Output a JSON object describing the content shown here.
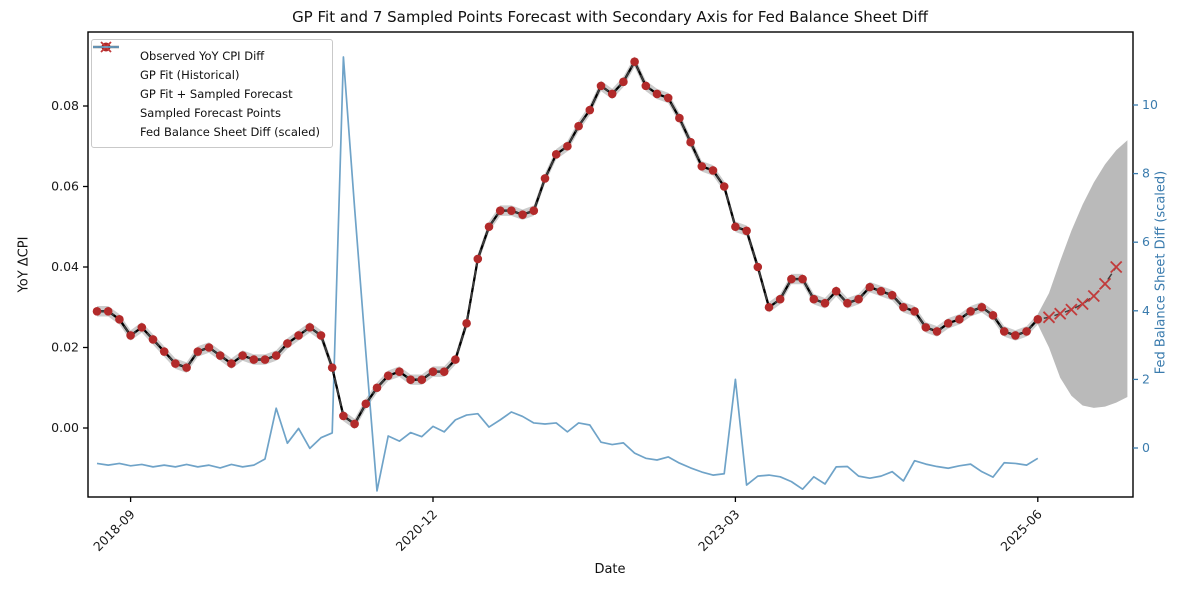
{
  "chart_data": {
    "type": "line",
    "title": "GP Fit and 7 Sampled Points Forecast with Secondary Axis for Fed Balance Sheet Diff",
    "xlabel": "Date",
    "ylabel": "YoY ΔCPI",
    "ylabel_right": "Fed Balance Sheet Diff (scaled)",
    "grid": false,
    "legend_position": "upper left",
    "axes": {
      "left": {
        "label": "YoY ΔCPI",
        "range": [
          -0.0172,
          0.0984
        ],
        "ticks": [
          {
            "v": 0.0,
            "t": "0.00"
          },
          {
            "v": 0.02,
            "t": "0.02"
          },
          {
            "v": 0.04,
            "t": "0.04"
          },
          {
            "v": 0.06,
            "t": "0.06"
          },
          {
            "v": 0.08,
            "t": "0.08"
          }
        ]
      },
      "right": {
        "label": "Fed Balance Sheet Diff (scaled)",
        "range": [
          -1.43,
          12.13
        ],
        "ticks": [
          {
            "v": 0,
            "t": "0"
          },
          {
            "v": 2,
            "t": "2"
          },
          {
            "v": 4,
            "t": "4"
          },
          {
            "v": 6,
            "t": "6"
          },
          {
            "v": 8,
            "t": "8"
          },
          {
            "v": 10,
            "t": "10"
          }
        ]
      },
      "x": {
        "label": "Date",
        "ticks": [
          {
            "v": "2018-09",
            "t": "2018-09"
          },
          {
            "v": "2020-12",
            "t": "2020-12"
          },
          {
            "v": "2023-03",
            "t": "2023-03"
          },
          {
            "v": "2025-06",
            "t": "2025-06"
          }
        ]
      }
    },
    "legend": {
      "items": [
        {
          "label": "Observed YoY CPI Diff",
          "marker": "circle"
        },
        {
          "label": "GP Fit (Historical)",
          "marker": "solid-line"
        },
        {
          "label": "GP Fit + Sampled Forecast",
          "marker": "dashed-line"
        },
        {
          "label": "Sampled Forecast Points",
          "marker": "x"
        },
        {
          "label": "Fed Balance Sheet Diff (scaled)",
          "marker": "blue-line"
        }
      ]
    },
    "colors": {
      "observed": "#b22a2a",
      "fit": "#000000",
      "forecast_line": "#3f3f3f",
      "forecast_marker": "#c23b3b",
      "fed": "#6fa3c8",
      "band": "#8f8f8f",
      "right_axis": "#3b7cae"
    },
    "months": [
      "2018-06",
      "2018-07",
      "2018-08",
      "2018-09",
      "2018-10",
      "2018-11",
      "2018-12",
      "2019-01",
      "2019-02",
      "2019-03",
      "2019-04",
      "2019-05",
      "2019-06",
      "2019-07",
      "2019-08",
      "2019-09",
      "2019-10",
      "2019-11",
      "2019-12",
      "2020-01",
      "2020-02",
      "2020-03",
      "2020-04",
      "2020-05",
      "2020-06",
      "2020-07",
      "2020-08",
      "2020-09",
      "2020-10",
      "2020-11",
      "2020-12",
      "2021-01",
      "2021-02",
      "2021-03",
      "2021-04",
      "2021-05",
      "2021-06",
      "2021-07",
      "2021-08",
      "2021-09",
      "2021-10",
      "2021-11",
      "2021-12",
      "2022-01",
      "2022-02",
      "2022-03",
      "2022-04",
      "2022-05",
      "2022-06",
      "2022-07",
      "2022-08",
      "2022-09",
      "2022-10",
      "2022-11",
      "2022-12",
      "2023-01",
      "2023-02",
      "2023-03",
      "2023-04",
      "2023-05",
      "2023-06",
      "2023-07",
      "2023-08",
      "2023-09",
      "2023-10",
      "2023-11",
      "2023-12",
      "2024-01",
      "2024-02",
      "2024-03",
      "2024-04",
      "2024-05",
      "2024-06",
      "2024-07",
      "2024-08",
      "2024-09",
      "2024-10",
      "2024-11",
      "2024-12",
      "2025-01",
      "2025-02",
      "2025-03",
      "2025-04",
      "2025-05",
      "2025-06"
    ],
    "cpi_observed": [
      0.029,
      0.029,
      0.027,
      0.023,
      0.025,
      0.022,
      0.019,
      0.016,
      0.015,
      0.019,
      0.02,
      0.018,
      0.016,
      0.018,
      0.017,
      0.017,
      0.018,
      0.021,
      0.023,
      0.025,
      0.023,
      0.015,
      0.003,
      0.001,
      0.006,
      0.01,
      0.013,
      0.014,
      0.012,
      0.012,
      0.014,
      0.014,
      0.017,
      0.026,
      0.042,
      0.05,
      0.054,
      0.054,
      0.053,
      0.054,
      0.062,
      0.068,
      0.07,
      0.075,
      0.079,
      0.085,
      0.083,
      0.086,
      0.091,
      0.085,
      0.083,
      0.082,
      0.077,
      0.071,
      0.065,
      0.064,
      0.06,
      0.05,
      0.049,
      0.04,
      0.03,
      0.032,
      0.037,
      0.037,
      0.032,
      0.031,
      0.034,
      0.031,
      0.032,
      0.035,
      0.034,
      0.033,
      0.03,
      0.029,
      0.025,
      0.024,
      0.026,
      0.027,
      0.029,
      0.03,
      0.028,
      0.024,
      0.023,
      0.024,
      0.027
    ],
    "gp_fit_equals_observed": true,
    "fed_diff_scaled": [
      -0.45,
      -0.5,
      -0.45,
      -0.52,
      -0.48,
      -0.55,
      -0.5,
      -0.55,
      -0.48,
      -0.55,
      -0.5,
      -0.58,
      -0.48,
      -0.55,
      -0.5,
      -0.32,
      1.16,
      0.14,
      0.57,
      -0.01,
      0.3,
      0.44,
      11.4,
      7.0,
      2.8,
      -1.25,
      0.35,
      0.2,
      0.45,
      0.33,
      0.63,
      0.47,
      0.82,
      0.96,
      1.0,
      0.61,
      0.82,
      1.05,
      0.92,
      0.73,
      0.7,
      0.73,
      0.47,
      0.73,
      0.67,
      0.17,
      0.1,
      0.15,
      -0.15,
      -0.3,
      -0.35,
      -0.26,
      -0.44,
      -0.58,
      -0.7,
      -0.79,
      -0.75,
      2.0,
      -1.08,
      -0.82,
      -0.79,
      -0.84,
      -0.98,
      -1.2,
      -0.84,
      -1.05,
      -0.55,
      -0.54,
      -0.82,
      -0.88,
      -0.82,
      -0.69,
      -0.96,
      -0.37,
      -0.47,
      -0.54,
      -0.59,
      -0.52,
      -0.47,
      -0.69,
      -0.85,
      -0.43,
      -0.45,
      -0.5,
      -0.3
    ],
    "forecast_months": [
      "2025-07",
      "2025-08",
      "2025-09",
      "2025-10",
      "2025-11",
      "2025-12",
      "2026-01"
    ],
    "forecast_values": [
      0.0275,
      0.0284,
      0.0294,
      0.0308,
      0.0328,
      0.0358,
      0.04
    ],
    "uncertainty": {
      "historical_halfwidth": 0.0013,
      "forecast": {
        "x": [
          "2025-06",
          "2025-07",
          "2025-08",
          "2025-09",
          "2025-10",
          "2025-11",
          "2025-12",
          "2026-01",
          "2026-02"
        ],
        "upper": [
          0.0283,
          0.0335,
          0.0415,
          0.049,
          0.0555,
          0.061,
          0.0655,
          0.069,
          0.0715
        ],
        "lower": [
          0.0257,
          0.02,
          0.0125,
          0.008,
          0.0056,
          0.005,
          0.0053,
          0.0063,
          0.0077
        ]
      }
    }
  }
}
